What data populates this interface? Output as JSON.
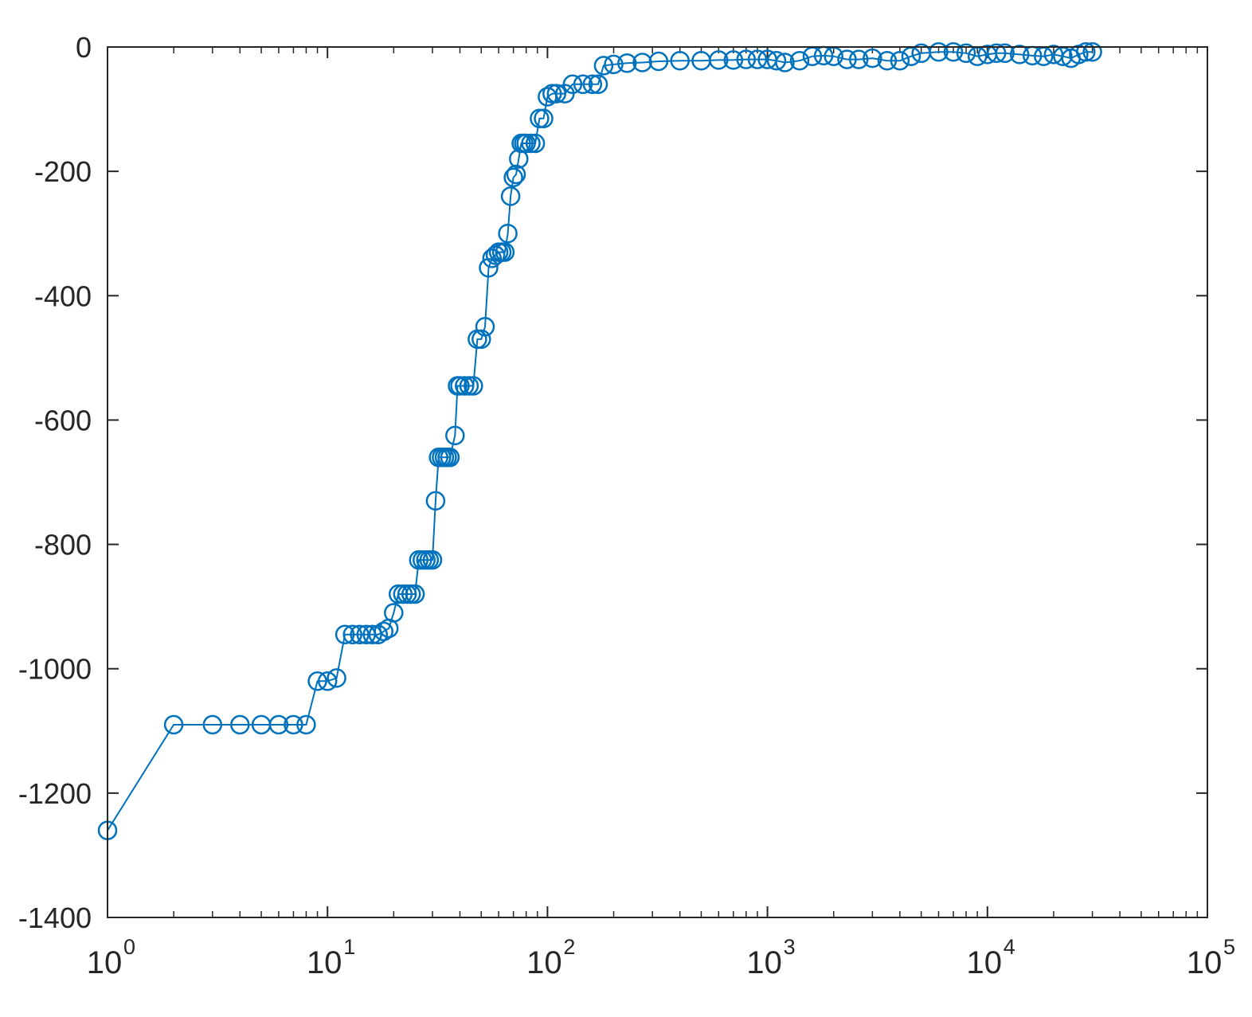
{
  "chart_data": {
    "type": "line",
    "marker": "open-circle",
    "x_scale": "log",
    "xlim": [
      1,
      100000
    ],
    "ylim": [
      -1400,
      0
    ],
    "x_ticks": [
      1,
      10,
      100,
      1000,
      10000,
      100000
    ],
    "x_tick_labels": [
      {
        "base": "10",
        "exp": "0"
      },
      {
        "base": "10",
        "exp": "1"
      },
      {
        "base": "10",
        "exp": "2"
      },
      {
        "base": "10",
        "exp": "3"
      },
      {
        "base": "10",
        "exp": "4"
      },
      {
        "base": "10",
        "exp": "5"
      }
    ],
    "y_ticks": [
      0,
      -200,
      -400,
      -600,
      -800,
      -1000,
      -1200,
      -1400
    ],
    "y_tick_labels": [
      "0",
      "-200",
      "-400",
      "-600",
      "-800",
      "-1000",
      "-1200",
      "-1400"
    ],
    "grid": false,
    "box": true,
    "colors": {
      "series": "#0072bd",
      "axes": "#262626"
    },
    "series": [
      {
        "points": [
          [
            1,
            -1260
          ],
          [
            2,
            -1090
          ],
          [
            3,
            -1090
          ],
          [
            4,
            -1090
          ],
          [
            5,
            -1090
          ],
          [
            6,
            -1090
          ],
          [
            7,
            -1090
          ],
          [
            8,
            -1090
          ],
          [
            9,
            -1020
          ],
          [
            10,
            -1020
          ],
          [
            11,
            -1015
          ],
          [
            12,
            -945
          ],
          [
            13,
            -945
          ],
          [
            14,
            -945
          ],
          [
            15,
            -945
          ],
          [
            16,
            -945
          ],
          [
            17,
            -945
          ],
          [
            18,
            -940
          ],
          [
            19,
            -935
          ],
          [
            20,
            -910
          ],
          [
            21,
            -880
          ],
          [
            22,
            -880
          ],
          [
            23,
            -880
          ],
          [
            24,
            -880
          ],
          [
            25,
            -880
          ],
          [
            26,
            -825
          ],
          [
            27,
            -825
          ],
          [
            28,
            -825
          ],
          [
            29,
            -825
          ],
          [
            30,
            -825
          ],
          [
            31,
            -730
          ],
          [
            32,
            -660
          ],
          [
            33,
            -660
          ],
          [
            34,
            -660
          ],
          [
            35,
            -660
          ],
          [
            36,
            -660
          ],
          [
            38,
            -625
          ],
          [
            39,
            -545
          ],
          [
            40,
            -545
          ],
          [
            42,
            -545
          ],
          [
            44,
            -545
          ],
          [
            46,
            -545
          ],
          [
            48,
            -470
          ],
          [
            50,
            -470
          ],
          [
            52,
            -450
          ],
          [
            54,
            -355
          ],
          [
            56,
            -340
          ],
          [
            58,
            -335
          ],
          [
            60,
            -330
          ],
          [
            62,
            -330
          ],
          [
            64,
            -330
          ],
          [
            66,
            -300
          ],
          [
            68,
            -240
          ],
          [
            70,
            -210
          ],
          [
            72,
            -205
          ],
          [
            74,
            -180
          ],
          [
            76,
            -155
          ],
          [
            78,
            -155
          ],
          [
            80,
            -155
          ],
          [
            84,
            -155
          ],
          [
            88,
            -155
          ],
          [
            92,
            -115
          ],
          [
            96,
            -115
          ],
          [
            100,
            -80
          ],
          [
            105,
            -75
          ],
          [
            110,
            -75
          ],
          [
            120,
            -75
          ],
          [
            130,
            -60
          ],
          [
            145,
            -60
          ],
          [
            160,
            -60
          ],
          [
            170,
            -60
          ],
          [
            180,
            -30
          ],
          [
            200,
            -28
          ],
          [
            230,
            -26
          ],
          [
            270,
            -25
          ],
          [
            320,
            -23
          ],
          [
            400,
            -22
          ],
          [
            500,
            -22
          ],
          [
            600,
            -21
          ],
          [
            700,
            -21
          ],
          [
            800,
            -20
          ],
          [
            900,
            -20
          ],
          [
            1000,
            -20
          ],
          [
            1100,
            -22
          ],
          [
            1200,
            -25
          ],
          [
            1400,
            -22
          ],
          [
            1600,
            -15
          ],
          [
            1800,
            -14
          ],
          [
            2000,
            -15
          ],
          [
            2300,
            -20
          ],
          [
            2600,
            -20
          ],
          [
            3000,
            -18
          ],
          [
            3500,
            -22
          ],
          [
            4000,
            -22
          ],
          [
            4500,
            -15
          ],
          [
            5000,
            -10
          ],
          [
            6000,
            -8
          ],
          [
            7000,
            -8
          ],
          [
            8000,
            -10
          ],
          [
            9000,
            -15
          ],
          [
            10000,
            -12
          ],
          [
            11000,
            -10
          ],
          [
            12000,
            -10
          ],
          [
            14000,
            -12
          ],
          [
            16000,
            -14
          ],
          [
            18000,
            -15
          ],
          [
            20000,
            -12
          ],
          [
            22000,
            -15
          ],
          [
            24000,
            -18
          ],
          [
            26000,
            -12
          ],
          [
            28000,
            -8
          ],
          [
            30000,
            -8
          ]
        ]
      }
    ]
  }
}
